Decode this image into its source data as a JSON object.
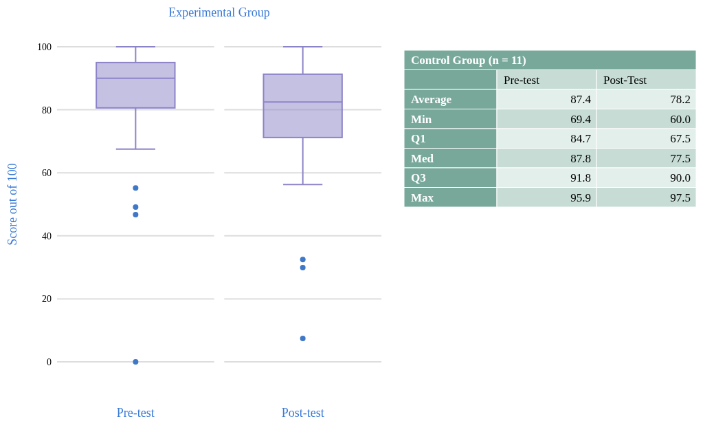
{
  "chart_data": [
    {
      "type": "box",
      "title": "Experimental Group",
      "ylabel": "Score out of 100",
      "categories": [
        "Pre-test",
        "Post-test"
      ],
      "ylim": [
        0,
        100
      ],
      "yticks": [
        0,
        20,
        40,
        60,
        80,
        100
      ],
      "grid": "y",
      "series": [
        {
          "color": "#8c84c8",
          "boxes": [
            {
              "low": 67.5,
              "q1": 80.6,
              "median": 90,
              "q3": 95,
              "high": 100,
              "outliers": [
                55.2,
                49.1,
                46.7,
                0
              ]
            },
            {
              "low": 56.3,
              "q1": 71.2,
              "median": 82.5,
              "q3": 91.3,
              "high": 100,
              "outliers": [
                32.5,
                29.9,
                7.4
              ]
            }
          ]
        }
      ]
    },
    {
      "type": "other",
      "title": "Control Group (n = 11)",
      "categories": [
        "Pre-test",
        "Post-Test"
      ],
      "y_categories": [
        "Average",
        "Min",
        "Q1",
        "Med",
        "Q3",
        "Max"
      ],
      "cell_labels": [
        [
          "87.4",
          "78.2"
        ],
        [
          "69.4",
          "60.0"
        ],
        [
          "84.7",
          "67.5"
        ],
        [
          "87.8",
          "77.5"
        ],
        [
          "91.8",
          "90.0"
        ],
        [
          "95.9",
          "97.5"
        ]
      ]
    }
  ]
}
